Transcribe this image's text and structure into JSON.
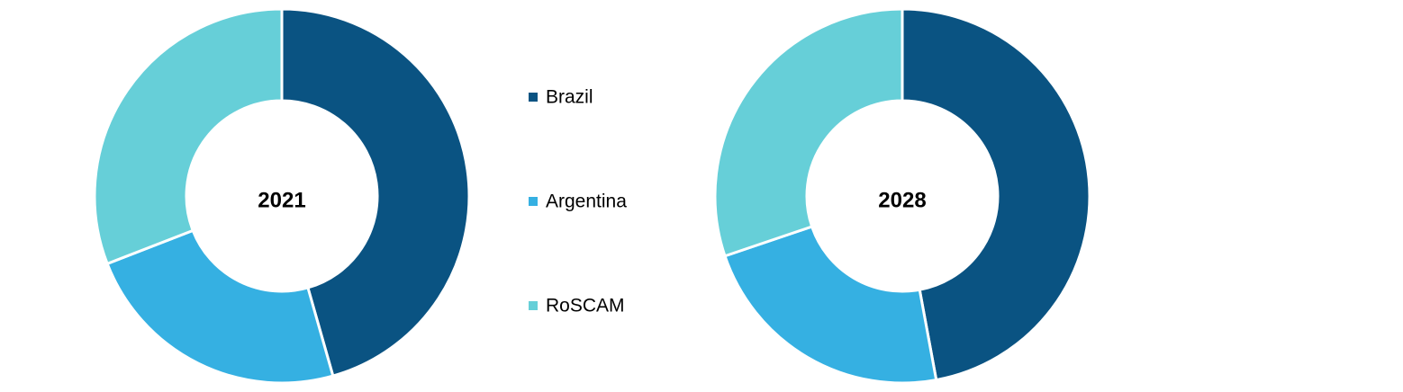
{
  "legend": {
    "labels": [
      "Brazil",
      "Argentina",
      "RoSCAM"
    ],
    "colors": [
      "#0a5382",
      "#35b0e2",
      "#66cfd8"
    ]
  },
  "chart_data": [
    {
      "type": "pie",
      "title": "2021",
      "values": [
        45.6,
        23.5,
        30.9
      ]
    },
    {
      "type": "pie",
      "title": "2028",
      "values": [
        47.1,
        22.7,
        30.2
      ]
    }
  ]
}
